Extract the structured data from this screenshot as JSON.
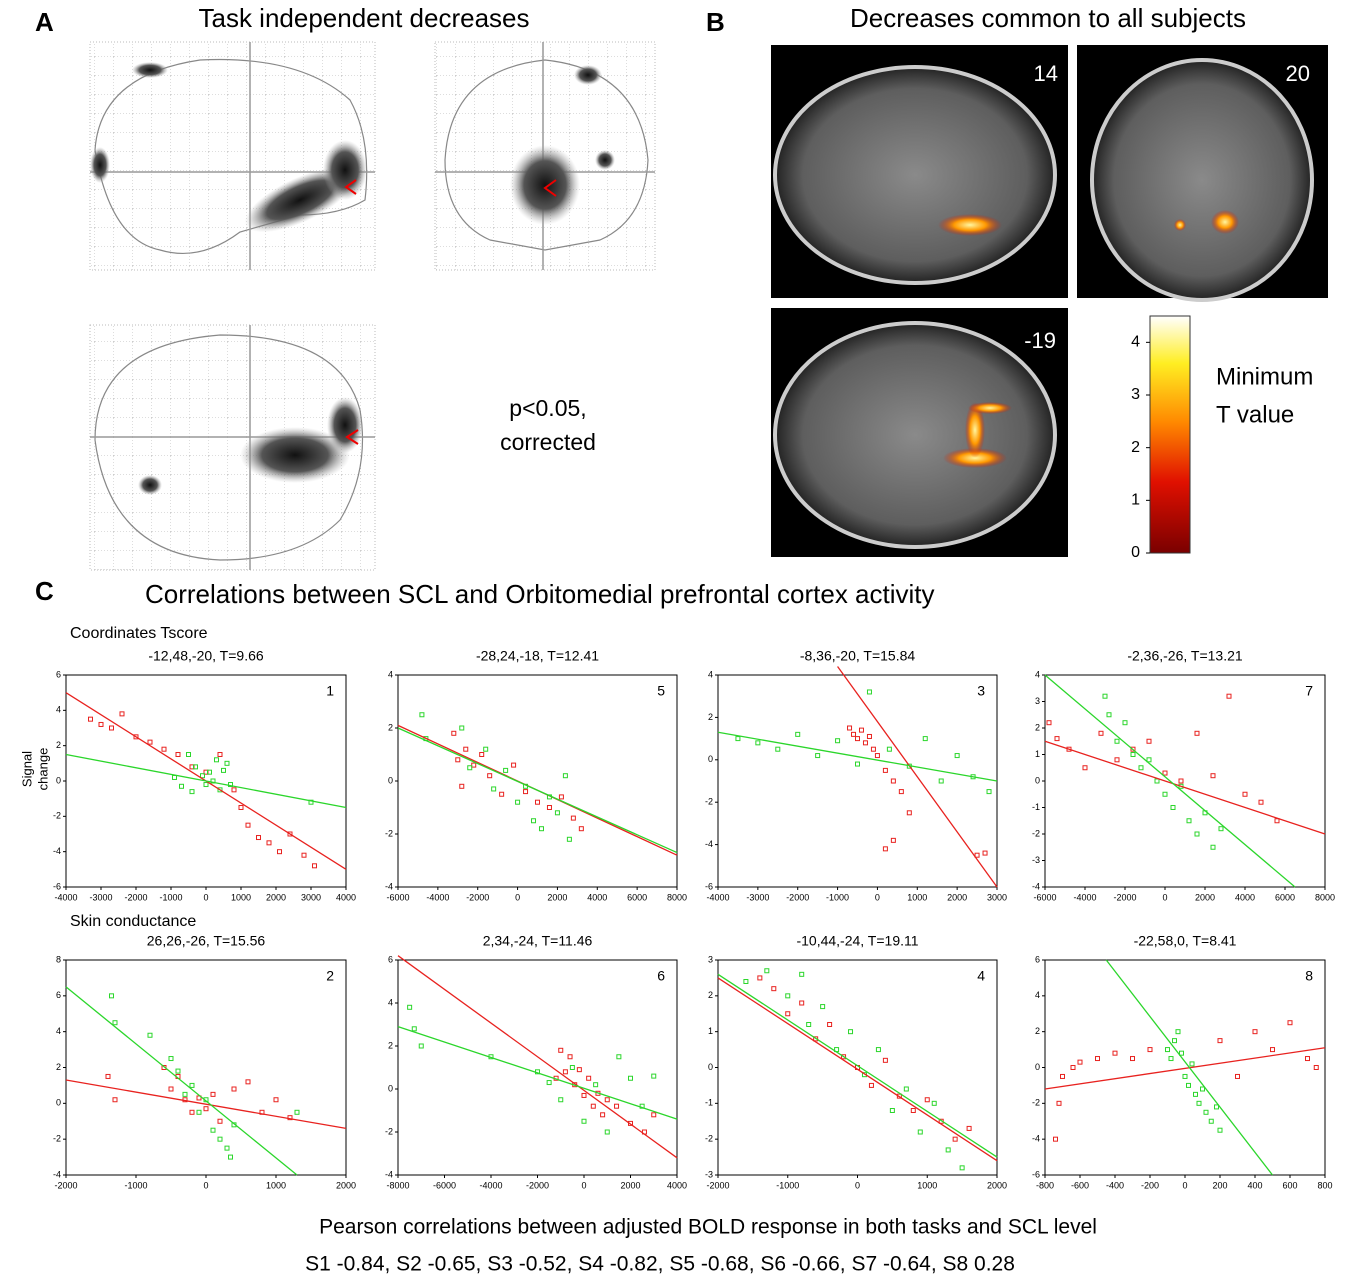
{
  "panel_a": {
    "label": "A",
    "title": "Task independent decreases",
    "note": [
      "p<0.05,",
      "corrected"
    ]
  },
  "panel_b": {
    "label": "B",
    "title": "Decreases common to all subjects",
    "slices": [
      14,
      20,
      -19
    ],
    "colorbar": {
      "title": [
        "Minimum",
        "T value"
      ],
      "ylim": [
        0,
        4.5
      ],
      "yticks": [
        0,
        1,
        2,
        3,
        4
      ]
    }
  },
  "panel_c": {
    "label": "C",
    "title": "Correlations between SCL and Orbitomedial prefrontal cortex activity",
    "header": "Coordinates   Tscore",
    "ylabel": [
      "Signal",
      "change"
    ],
    "xlabel": "Skin conductance"
  },
  "chart_data": [
    {
      "type": "scatter",
      "title": "-12,48,-20, T=9.66",
      "subject": 1,
      "xlim": [
        -4000,
        4000
      ],
      "xticks": [
        -4000,
        -3000,
        -2000,
        -1000,
        0,
        1000,
        2000,
        3000,
        4000
      ],
      "ylim": [
        -6,
        6
      ],
      "yticks": [
        -6,
        -4,
        -2,
        0,
        2,
        4,
        6
      ],
      "series": [
        {
          "color": "#e8221f",
          "x": [
            -3300,
            -3000,
            -2700,
            -2400,
            -2000,
            -1600,
            -1200,
            -800,
            -400,
            0,
            400,
            800,
            1000,
            1200,
            1500,
            1800,
            2100,
            2400,
            2800,
            3100
          ],
          "values": [
            3.5,
            3.2,
            3.0,
            3.8,
            2.5,
            2.2,
            1.8,
            1.5,
            0.8,
            0.5,
            1.5,
            -0.5,
            -1.5,
            -2.5,
            -3.2,
            -3.5,
            -4.0,
            -3.0,
            -4.2,
            -4.8
          ],
          "fit_x": [
            -4000,
            4000
          ],
          "fit_y": [
            5.0,
            -5.0
          ]
        },
        {
          "color": "#2bd62b",
          "x": [
            -900,
            -700,
            -500,
            -300,
            -100,
            0,
            100,
            200,
            300,
            400,
            500,
            600,
            700,
            -400,
            3000
          ],
          "values": [
            0.2,
            -0.3,
            1.5,
            0.8,
            0.3,
            -0.2,
            0.5,
            0.0,
            1.2,
            -0.5,
            0.6,
            1.0,
            -0.2,
            -0.6,
            -1.2
          ],
          "fit_x": [
            -4000,
            4000
          ],
          "fit_y": [
            1.5,
            -1.5
          ]
        }
      ]
    },
    {
      "type": "scatter",
      "title": "-28,24,-18, T=12.41",
      "subject": 5,
      "xlim": [
        -6000,
        8000
      ],
      "xticks": [
        -6000,
        -4000,
        -2000,
        0,
        2000,
        4000,
        6000,
        8000
      ],
      "ylim": [
        -4,
        4
      ],
      "yticks": [
        -4,
        -2,
        0,
        2,
        4
      ],
      "series": [
        {
          "color": "#e8221f",
          "x": [
            -3200,
            -3000,
            -2800,
            -2600,
            -2200,
            -1800,
            -1400,
            -800,
            -200,
            400,
            1000,
            1600,
            2200,
            2800,
            3200
          ],
          "values": [
            1.8,
            0.8,
            -0.2,
            1.2,
            0.6,
            1.0,
            0.2,
            -0.5,
            0.6,
            -0.4,
            -0.8,
            -1.0,
            -0.6,
            -1.4,
            -1.8
          ],
          "fit_x": [
            -6000,
            8000
          ],
          "fit_y": [
            2.1,
            -2.8
          ]
        },
        {
          "color": "#2bd62b",
          "x": [
            -4800,
            -4600,
            -2800,
            -2400,
            -1600,
            -1200,
            -600,
            0,
            400,
            800,
            1200,
            1600,
            2000,
            2400,
            2600
          ],
          "values": [
            2.5,
            1.6,
            2.0,
            0.5,
            1.2,
            -0.3,
            0.4,
            -0.8,
            -0.2,
            -1.5,
            -1.8,
            -0.6,
            -1.2,
            0.2,
            -2.2
          ],
          "fit_x": [
            -6000,
            8000
          ],
          "fit_y": [
            2.0,
            -2.7
          ]
        }
      ]
    },
    {
      "type": "scatter",
      "title": "-8,36,-20, T=15.84",
      "subject": 3,
      "xlim": [
        -4000,
        3000
      ],
      "xticks": [
        -4000,
        -3000,
        -2000,
        -1000,
        0,
        1000,
        2000,
        3000
      ],
      "ylim": [
        -6,
        4
      ],
      "yticks": [
        -6,
        -4,
        -2,
        0,
        2,
        4
      ],
      "series": [
        {
          "color": "#e8221f",
          "x": [
            -700,
            -600,
            -500,
            -400,
            -300,
            -200,
            -100,
            0,
            200,
            400,
            600,
            800,
            200,
            400,
            2500,
            2700
          ],
          "values": [
            1.5,
            1.2,
            1.0,
            1.4,
            0.8,
            1.1,
            0.5,
            0.2,
            -0.5,
            -1.0,
            -1.5,
            -2.5,
            -4.2,
            -3.8,
            -4.5,
            -4.4
          ],
          "fit_x": [
            -1000,
            3000
          ],
          "fit_y": [
            4.4,
            -6.0
          ]
        },
        {
          "color": "#2bd62b",
          "x": [
            -3500,
            -3000,
            -2500,
            -2000,
            -1500,
            -1000,
            -500,
            -200,
            300,
            800,
            1200,
            1600,
            2000,
            2400,
            2800
          ],
          "values": [
            1.0,
            0.8,
            0.5,
            1.2,
            0.2,
            0.9,
            -0.2,
            3.2,
            0.5,
            -0.3,
            1.0,
            -1.0,
            0.2,
            -0.8,
            -1.5
          ],
          "fit_x": [
            -4000,
            3000
          ],
          "fit_y": [
            1.3,
            -1.0
          ]
        }
      ]
    },
    {
      "type": "scatter",
      "title": "-2,36,-26, T=13.21",
      "subject": 7,
      "xlim": [
        -6000,
        8000
      ],
      "xticks": [
        -6000,
        -4000,
        -2000,
        0,
        2000,
        4000,
        6000,
        8000
      ],
      "ylim": [
        -4,
        4
      ],
      "yticks": [
        -4,
        -3,
        -2,
        -1,
        0,
        1,
        2,
        3,
        4
      ],
      "series": [
        {
          "color": "#e8221f",
          "x": [
            -5800,
            -5400,
            -4800,
            -4000,
            -3200,
            -2400,
            -1600,
            -800,
            0,
            800,
            1600,
            2400,
            3200,
            4000,
            4800,
            5600
          ],
          "values": [
            2.2,
            1.6,
            1.2,
            0.5,
            1.8,
            0.8,
            1.2,
            1.5,
            0.3,
            0.0,
            1.8,
            0.2,
            3.2,
            -0.5,
            -0.8,
            -1.5
          ],
          "fit_x": [
            -6000,
            8000
          ],
          "fit_y": [
            1.5,
            -2.0
          ]
        },
        {
          "color": "#2bd62b",
          "x": [
            -3000,
            -2800,
            -2400,
            -2000,
            -1600,
            -1200,
            -800,
            -400,
            0,
            400,
            800,
            1200,
            1600,
            2000,
            2400,
            2800
          ],
          "values": [
            3.2,
            2.5,
            1.5,
            2.2,
            1.0,
            0.5,
            0.8,
            0.0,
            -0.5,
            -1.0,
            -0.2,
            -1.5,
            -2.0,
            -1.2,
            -2.5,
            -1.8
          ],
          "fit_x": [
            -6000,
            6500
          ],
          "fit_y": [
            4.0,
            -4.0
          ]
        }
      ]
    },
    {
      "type": "scatter",
      "title": "26,26,-26, T=15.56",
      "subject": 2,
      "xlim": [
        -2000,
        2000
      ],
      "xticks": [
        -2000,
        -1000,
        0,
        1000,
        2000
      ],
      "ylim": [
        -4,
        8
      ],
      "yticks": [
        -4,
        -2,
        0,
        2,
        4,
        6,
        8
      ],
      "series": [
        {
          "color": "#e8221f",
          "x": [
            -1400,
            -1300,
            -600,
            -500,
            -400,
            -300,
            -200,
            -100,
            0,
            100,
            200,
            400,
            600,
            800,
            1000,
            1200
          ],
          "values": [
            1.5,
            0.2,
            2.0,
            0.8,
            1.5,
            0.2,
            -0.5,
            0.3,
            -0.3,
            0.5,
            -1.0,
            0.8,
            1.2,
            -0.5,
            0.2,
            -0.8
          ],
          "fit_x": [
            -2000,
            2000
          ],
          "fit_y": [
            1.3,
            -1.4
          ]
        },
        {
          "color": "#2bd62b",
          "x": [
            -1350,
            -1300,
            -800,
            -500,
            -400,
            -300,
            -200,
            -100,
            0,
            100,
            200,
            300,
            350,
            400,
            1300
          ],
          "values": [
            6.0,
            4.5,
            3.8,
            2.5,
            1.8,
            0.5,
            1.0,
            -0.5,
            0.2,
            -1.5,
            -2.0,
            -2.5,
            -3.0,
            -1.2,
            -0.5
          ],
          "fit_x": [
            -2000,
            1300
          ],
          "fit_y": [
            6.5,
            -4.0
          ]
        }
      ]
    },
    {
      "type": "scatter",
      "title": "2,34,-24, T=11.46",
      "subject": 6,
      "xlim": [
        -8000,
        4000
      ],
      "xticks": [
        -8000,
        -6000,
        -4000,
        -2000,
        0,
        2000,
        4000
      ],
      "ylim": [
        -4,
        6
      ],
      "yticks": [
        -4,
        -2,
        0,
        2,
        4,
        6
      ],
      "series": [
        {
          "color": "#e8221f",
          "x": [
            -1200,
            -1000,
            -800,
            -600,
            -400,
            -200,
            0,
            200,
            400,
            600,
            800,
            1000,
            1400,
            2000,
            2600,
            3000
          ],
          "values": [
            0.5,
            1.8,
            0.8,
            1.5,
            0.2,
            0.9,
            -0.3,
            0.5,
            -0.8,
            -0.2,
            -1.2,
            -0.5,
            -0.8,
            -1.6,
            -2.0,
            -1.2
          ],
          "fit_x": [
            -8000,
            4000
          ],
          "fit_y": [
            6.2,
            -3.2
          ]
        },
        {
          "color": "#2bd62b",
          "x": [
            -7500,
            -7300,
            -7000,
            -4000,
            -2000,
            -1500,
            -1000,
            -500,
            0,
            500,
            1000,
            1500,
            2000,
            2500,
            3000
          ],
          "values": [
            3.8,
            2.8,
            2.0,
            1.5,
            0.8,
            0.3,
            -0.5,
            1.0,
            -1.5,
            0.2,
            -2.0,
            1.5,
            0.5,
            -0.8,
            0.6
          ],
          "fit_x": [
            -8000,
            4000
          ],
          "fit_y": [
            2.9,
            -1.4
          ]
        }
      ]
    },
    {
      "type": "scatter",
      "title": "-10,44,-24, T=19.11",
      "subject": 4,
      "xlim": [
        -2000,
        2000
      ],
      "xticks": [
        -2000,
        -1000,
        0,
        1000,
        2000
      ],
      "ylim": [
        -3,
        3
      ],
      "yticks": [
        -3,
        -2,
        -1,
        0,
        1,
        2,
        3
      ],
      "series": [
        {
          "color": "#e8221f",
          "x": [
            -1400,
            -1200,
            -1000,
            -800,
            -600,
            -400,
            -200,
            0,
            200,
            400,
            600,
            800,
            1000,
            1200,
            1400,
            1600
          ],
          "values": [
            2.5,
            2.2,
            1.5,
            1.8,
            0.8,
            1.2,
            0.3,
            0.0,
            -0.5,
            0.2,
            -0.8,
            -1.2,
            -0.9,
            -1.5,
            -2.0,
            -1.7
          ],
          "fit_x": [
            -2000,
            2000
          ],
          "fit_y": [
            2.5,
            -2.6
          ]
        },
        {
          "color": "#2bd62b",
          "x": [
            -1600,
            -1300,
            -1000,
            -800,
            -700,
            -500,
            -300,
            -100,
            100,
            300,
            500,
            700,
            900,
            1100,
            1300,
            1500
          ],
          "values": [
            2.4,
            2.7,
            2.0,
            2.6,
            1.2,
            1.7,
            0.5,
            1.0,
            -0.2,
            0.5,
            -1.2,
            -0.6,
            -1.8,
            -1.0,
            -2.3,
            -2.8
          ],
          "fit_x": [
            -2000,
            2000
          ],
          "fit_y": [
            2.6,
            -2.5
          ]
        }
      ]
    },
    {
      "type": "scatter",
      "title": "-22,58,0, T=8.41",
      "subject": 8,
      "xlim": [
        -800,
        800
      ],
      "xticks": [
        -800,
        -600,
        -400,
        -200,
        0,
        200,
        400,
        600,
        800
      ],
      "ylim": [
        -6,
        6
      ],
      "yticks": [
        -6,
        -4,
        -2,
        0,
        2,
        4,
        6
      ],
      "series": [
        {
          "color": "#e8221f",
          "x": [
            -740,
            -720,
            -700,
            -640,
            -600,
            -500,
            -400,
            -300,
            -200,
            200,
            300,
            400,
            500,
            600,
            700,
            750
          ],
          "values": [
            -4.0,
            -2.0,
            -0.5,
            0.0,
            0.3,
            0.5,
            0.8,
            0.5,
            1.0,
            1.5,
            -0.5,
            2.0,
            1.0,
            2.5,
            0.5,
            0.0
          ],
          "fit_x": [
            -800,
            800
          ],
          "fit_y": [
            -1.2,
            1.1
          ]
        },
        {
          "color": "#2bd62b",
          "x": [
            -100,
            -80,
            -60,
            -40,
            -20,
            0,
            20,
            40,
            60,
            80,
            100,
            120,
            150,
            180,
            200
          ],
          "values": [
            1.0,
            0.5,
            1.5,
            2.0,
            0.8,
            -0.5,
            -1.0,
            0.2,
            -1.5,
            -2.0,
            -1.2,
            -2.5,
            -3.0,
            -2.2,
            -3.5
          ],
          "fit_x": [
            -450,
            500
          ],
          "fit_y": [
            6.0,
            -6.0
          ]
        }
      ]
    }
  ],
  "footer": [
    "Pearson correlations between adjusted BOLD response in both tasks and SCL level",
    "S1 -0.84, S2 -0.65, S3 -0.52, S4 -0.82, S5 -0.68, S6 -0.66, S7 -0.64, S8 0.28"
  ]
}
